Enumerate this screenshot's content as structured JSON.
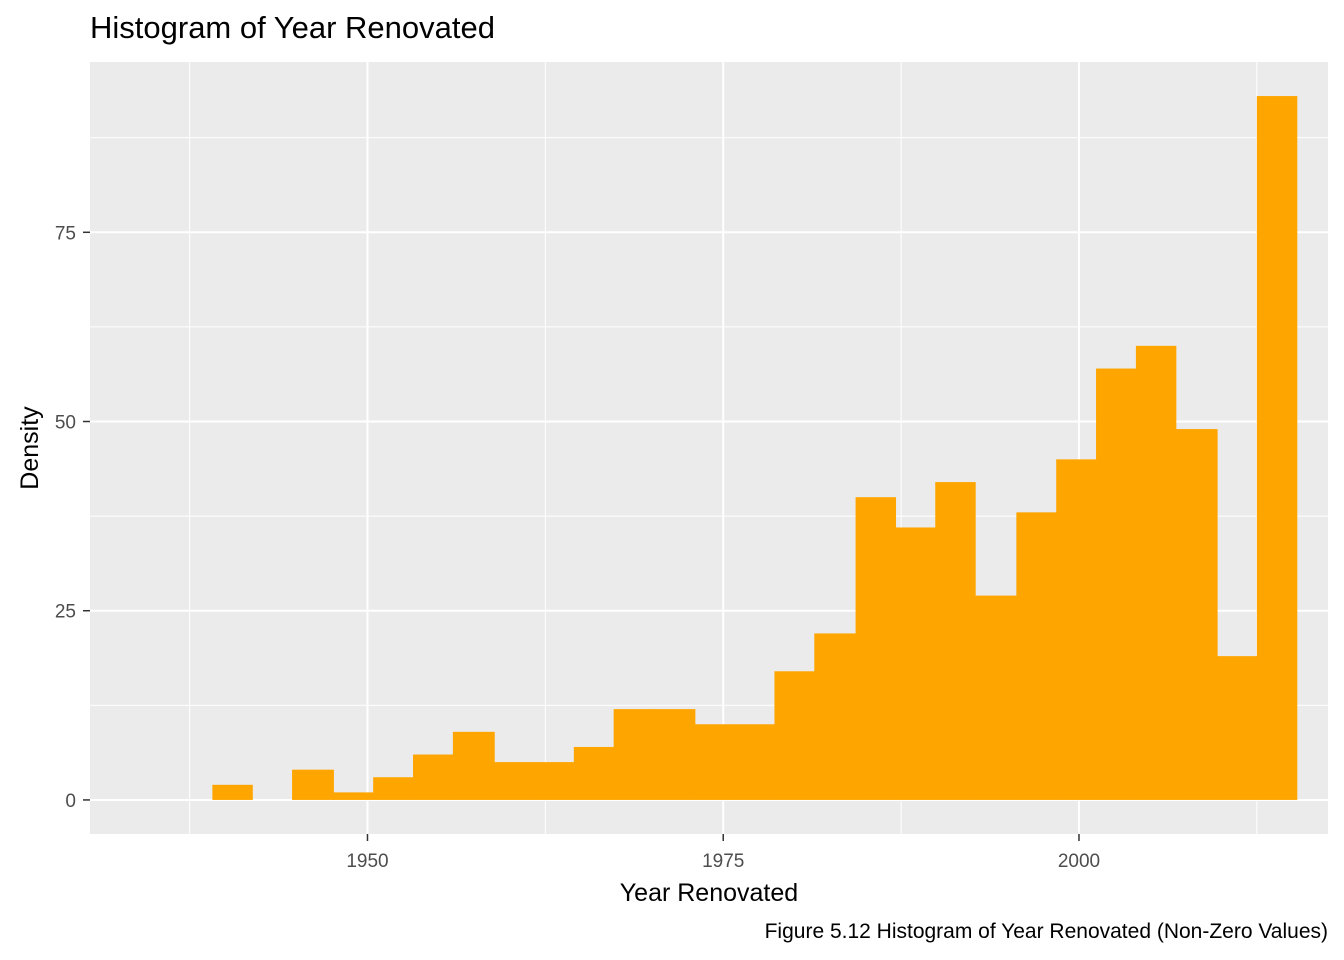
{
  "chart_data": {
    "type": "bar",
    "title": "Histogram of Year Renovated",
    "caption": "Figure 5.12 Histogram of Year Renovated (Non-Zero Values)",
    "xlabel": "Year Renovated",
    "ylabel": "Density",
    "xlim": [
      1930.5,
      2017.5
    ],
    "ylim": [
      -4.5,
      97.5
    ],
    "x_ticks": [
      1950,
      1975,
      2000
    ],
    "x_tick_labels": [
      "1950",
      "1975",
      "2000"
    ],
    "y_ticks": [
      0,
      25,
      50,
      75
    ],
    "y_tick_labels": [
      "0",
      "25",
      "50",
      "75"
    ],
    "bin_width": 2.83,
    "bins": [
      {
        "x_start": 1939.1,
        "x_end": 1941.9,
        "value": 2
      },
      {
        "x_start": 1941.9,
        "x_end": 1944.7,
        "value": 0
      },
      {
        "x_start": 1944.7,
        "x_end": 1947.6,
        "value": 4
      },
      {
        "x_start": 1947.6,
        "x_end": 1950.4,
        "value": 1
      },
      {
        "x_start": 1950.4,
        "x_end": 1953.2,
        "value": 3
      },
      {
        "x_start": 1953.2,
        "x_end": 1956.0,
        "value": 6
      },
      {
        "x_start": 1956.0,
        "x_end": 1958.9,
        "value": 9
      },
      {
        "x_start": 1958.9,
        "x_end": 1961.7,
        "value": 5
      },
      {
        "x_start": 1961.7,
        "x_end": 1964.5,
        "value": 5
      },
      {
        "x_start": 1964.5,
        "x_end": 1967.3,
        "value": 7
      },
      {
        "x_start": 1967.3,
        "x_end": 1970.2,
        "value": 12
      },
      {
        "x_start": 1970.2,
        "x_end": 1973.0,
        "value": 12
      },
      {
        "x_start": 1973.0,
        "x_end": 1975.8,
        "value": 10
      },
      {
        "x_start": 1975.8,
        "x_end": 1978.6,
        "value": 10
      },
      {
        "x_start": 1978.6,
        "x_end": 1981.4,
        "value": 17
      },
      {
        "x_start": 1981.4,
        "x_end": 1984.3,
        "value": 22
      },
      {
        "x_start": 1984.3,
        "x_end": 1987.1,
        "value": 40
      },
      {
        "x_start": 1987.1,
        "x_end": 1989.9,
        "value": 36
      },
      {
        "x_start": 1989.9,
        "x_end": 1992.7,
        "value": 42
      },
      {
        "x_start": 1992.7,
        "x_end": 1995.6,
        "value": 27
      },
      {
        "x_start": 1995.6,
        "x_end": 1998.4,
        "value": 38
      },
      {
        "x_start": 1998.4,
        "x_end": 2001.2,
        "value": 45
      },
      {
        "x_start": 2001.2,
        "x_end": 2004.0,
        "value": 57
      },
      {
        "x_start": 2004.0,
        "x_end": 2006.8,
        "value": 60
      },
      {
        "x_start": 2006.8,
        "x_end": 2009.7,
        "value": 49
      },
      {
        "x_start": 2009.7,
        "x_end": 2012.5,
        "value": 19
      },
      {
        "x_start": 2012.5,
        "x_end": 2015.3,
        "value": 93
      }
    ],
    "bar_color": "#FFA500",
    "panel_background": "#EBEBEB",
    "grid_color": "#FFFFFF",
    "grid": true,
    "legend": "none"
  }
}
